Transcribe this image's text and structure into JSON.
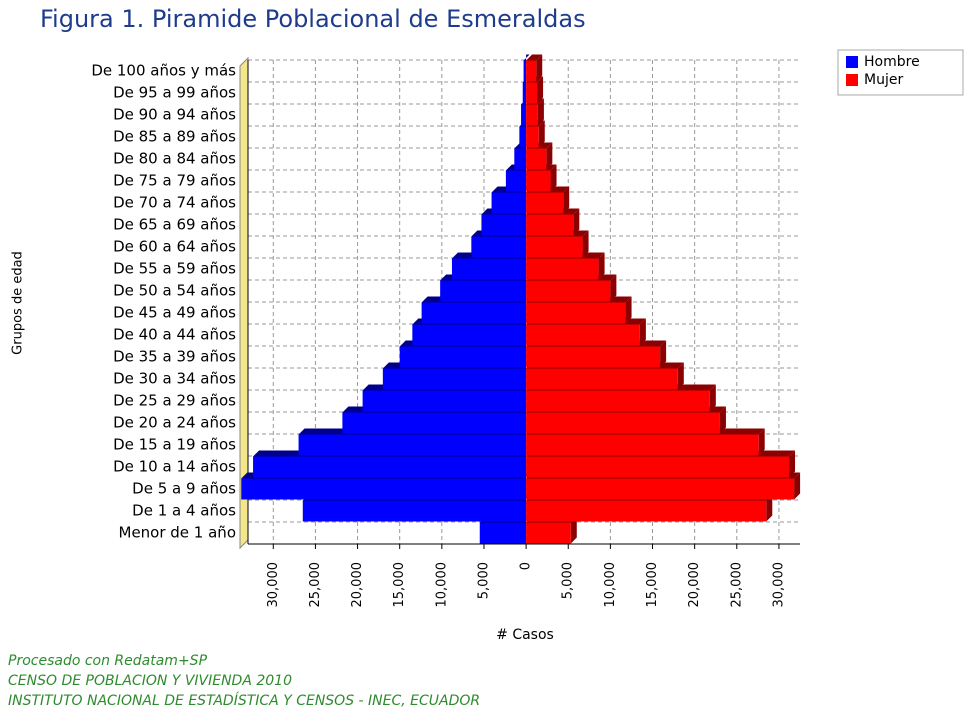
{
  "chart_data": {
    "type": "pyramid",
    "title": "Figura 1. Piramide Poblacional de Esmeraldas",
    "x_label": "# Casos",
    "y_label": "Grupos de edad",
    "categories": [
      "Menor de 1 año",
      "De 1 a 4 años",
      "De 5 a 9 años",
      "De 10 a 14 años",
      "De 15 a 19 años",
      "De 20 a 24 años",
      "De 25 a 29 años",
      "De 30 a 34 años",
      "De 35 a 39 años",
      "De 40 a 44 años",
      "De 45 a 49 años",
      "De 50 a 54 años",
      "De 55 a 59 años",
      "De 60 a 64 años",
      "De 65 a 69 años",
      "De 70 a 74 años",
      "De 75 a 79 años",
      "De 80 a 84 años",
      "De 85 a 89 años",
      "De 90 a 94 años",
      "De 95 a 99 años",
      "De 100 años y más"
    ],
    "series": [
      {
        "name": "Hombre",
        "color": "#0000ff",
        "values": [
          -5500,
          -26500,
          -33800,
          -32400,
          -27000,
          -21800,
          -19400,
          -17000,
          -15000,
          -13500,
          -12400,
          -10200,
          -8800,
          -6500,
          -5300,
          -4100,
          -2400,
          -1400,
          -800,
          -600,
          -400,
          -300
        ]
      },
      {
        "name": "Mujer",
        "color": "#ff0000",
        "values": [
          5300,
          28500,
          31800,
          31200,
          27600,
          23000,
          21800,
          18000,
          15900,
          13500,
          11800,
          10000,
          8600,
          6700,
          5600,
          4400,
          2900,
          2400,
          1500,
          1400,
          1300,
          1200
        ]
      }
    ],
    "xlim": [
      -33000,
      32500
    ],
    "xticks": [
      {
        "value": -30000,
        "label": "30,000"
      },
      {
        "value": -25000,
        "label": "25,000"
      },
      {
        "value": -20000,
        "label": "20,000"
      },
      {
        "value": -15000,
        "label": "15,000"
      },
      {
        "value": -10000,
        "label": "10,000"
      },
      {
        "value": -5000,
        "label": "5,000"
      },
      0,
      {
        "value": 5000,
        "label": "5,000"
      },
      {
        "value": 10000,
        "label": "10,000"
      },
      {
        "value": 15000,
        "label": "15,000"
      },
      {
        "value": 20000,
        "label": "20,000"
      },
      {
        "value": 25000,
        "label": "25,000"
      },
      {
        "value": 30000,
        "label": "30,000"
      }
    ],
    "grid": true,
    "legend": "top-right"
  },
  "footer": [
    "Procesado con Redatam+SP",
    "CENSO DE POBLACION Y VIVIENDA 2010",
    "INSTITUTO NACIONAL DE ESTADÍSTICA Y CENSOS - INEC, ECUADOR"
  ]
}
